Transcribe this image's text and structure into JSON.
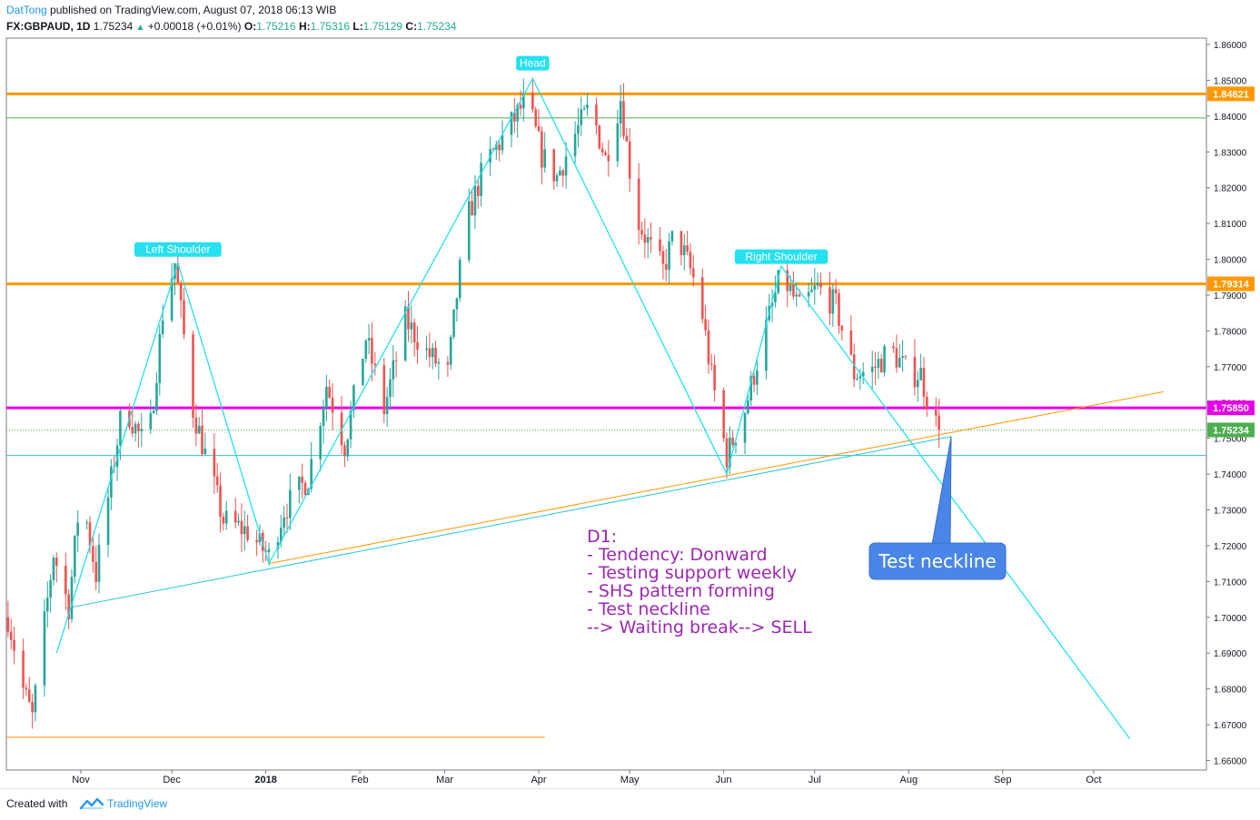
{
  "header": {
    "author": "DatTong",
    "published": "published on TradingView.com, August 07, 2018 06:13 WIB",
    "symbol": "FX:GBPAUD, 1D",
    "last": "1.75234",
    "change": "+0.00018 (+0.01%)",
    "o_label": "O:",
    "o": "1.75216",
    "h_label": "H:",
    "h": "1.75316",
    "l_label": "L:",
    "l": "1.75129",
    "c_label": "C:",
    "c": "1.75234"
  },
  "footer": {
    "created_with": "Created with",
    "brand": "TradingView"
  },
  "chart_data": {
    "type": "candlestick",
    "ylim": [
      1.655,
      1.865
    ],
    "y_ticks": [
      "1.86000",
      "1.85000",
      "1.84000",
      "1.83000",
      "1.82000",
      "1.81000",
      "1.80000",
      "1.79000",
      "1.78000",
      "1.77000",
      "1.76000",
      "1.75000",
      "1.74000",
      "1.73000",
      "1.72000",
      "1.71000",
      "1.70000",
      "1.69000",
      "1.68000",
      "1.67000",
      "1.66000"
    ],
    "x_ticks": [
      {
        "label": "Nov",
        "day": 33
      },
      {
        "label": "Dec",
        "day": 63
      },
      {
        "label": "2018",
        "day": 94
      },
      {
        "label": "Feb",
        "day": 125
      },
      {
        "label": "Mar",
        "day": 153
      },
      {
        "label": "Apr",
        "day": 184
      },
      {
        "label": "May",
        "day": 214
      },
      {
        "label": "Jun",
        "day": 245
      },
      {
        "label": "Jul",
        "day": 275
      },
      {
        "label": "Aug",
        "day": 306
      },
      {
        "label": "Sep",
        "day": 337
      },
      {
        "label": "Oct",
        "day": 367
      }
    ],
    "x_range": [
      9,
      390
    ],
    "price_levels": [
      {
        "label": "1.84621",
        "value": 1.84621,
        "color": "#ff9800",
        "width": 3
      },
      {
        "label": "1.79314",
        "value": 1.79314,
        "color": "#ff9800",
        "width": 3
      },
      {
        "label": "1.75850",
        "value": 1.7585,
        "color": "#e800e8",
        "width": 3
      }
    ],
    "thin_levels": [
      {
        "value": 1.8395,
        "color": "#4caf50"
      },
      {
        "value": 1.7452,
        "color": "#26c6da"
      },
      {
        "value": 1.6665,
        "color": "#ff9800",
        "x_end_day": 186
      }
    ],
    "last_price": {
      "label": "1.75234",
      "value": 1.75234,
      "color": "#4caf50"
    },
    "pattern_points": [
      {
        "day": 25,
        "price": 1.69
      },
      {
        "day": 65,
        "price": 1.799
      },
      {
        "day": 95,
        "price": 1.715
      },
      {
        "day": 182,
        "price": 1.8505
      },
      {
        "day": 246,
        "price": 1.74
      },
      {
        "day": 264,
        "price": 1.798
      },
      {
        "day": 379,
        "price": 1.666
      }
    ],
    "pattern_labels": [
      {
        "text": "Left Shoulder",
        "day": 65,
        "price": 1.8025
      },
      {
        "text": "Head",
        "day": 182,
        "price": 1.8545
      },
      {
        "text": "Right Shoulder",
        "day": 264,
        "price": 1.8005
      }
    ],
    "neckline_cyan": [
      {
        "day": 28,
        "price": 1.7025
      },
      {
        "day": 320,
        "price": 1.7505
      }
    ],
    "neckline_orange": [
      {
        "day": 95,
        "price": 1.715
      },
      {
        "day": 390,
        "price": 1.763
      }
    ],
    "note_lines": [
      "D1:",
      "- Tendency: Donward",
      "- Testing support weekly",
      "- SHS pattern forming",
      "- Test neckline",
      "--> Waiting break--> SELL"
    ],
    "note_color": "#9c27b0",
    "callout": {
      "text": "Test neckline",
      "color": "#4a86e8",
      "tip_day": 320,
      "tip_price": 1.7505
    },
    "up_color": "#26a69a",
    "down_color": "#ef5350",
    "anchors": [
      [
        9,
        1.7
      ],
      [
        14,
        1.68
      ],
      [
        17,
        1.672
      ],
      [
        24,
        1.718
      ],
      [
        29,
        1.703
      ],
      [
        33,
        1.736
      ],
      [
        38,
        1.712
      ],
      [
        47,
        1.76
      ],
      [
        55,
        1.746
      ],
      [
        60,
        1.785
      ],
      [
        64,
        1.799
      ],
      [
        70,
        1.758
      ],
      [
        80,
        1.727
      ],
      [
        88,
        1.724
      ],
      [
        95,
        1.717
      ],
      [
        100,
        1.73
      ],
      [
        108,
        1.739
      ],
      [
        114,
        1.765
      ],
      [
        120,
        1.748
      ],
      [
        127,
        1.778
      ],
      [
        133,
        1.758
      ],
      [
        140,
        1.783
      ],
      [
        147,
        1.774
      ],
      [
        154,
        1.768
      ],
      [
        157,
        1.79
      ],
      [
        160,
        1.81
      ],
      [
        166,
        1.826
      ],
      [
        173,
        1.835
      ],
      [
        180,
        1.845
      ],
      [
        185,
        1.829
      ],
      [
        190,
        1.823
      ],
      [
        196,
        1.835
      ],
      [
        201,
        1.843
      ],
      [
        206,
        1.828
      ],
      [
        211,
        1.845
      ],
      [
        216,
        1.812
      ],
      [
        221,
        1.803
      ],
      [
        225,
        1.797
      ],
      [
        229,
        1.808
      ],
      [
        234,
        1.797
      ],
      [
        237,
        1.79
      ],
      [
        241,
        1.767
      ],
      [
        246,
        1.745
      ],
      [
        252,
        1.758
      ],
      [
        258,
        1.778
      ],
      [
        264,
        1.796
      ],
      [
        270,
        1.786
      ],
      [
        276,
        1.792
      ],
      [
        282,
        1.787
      ],
      [
        288,
        1.768
      ],
      [
        294,
        1.769
      ],
      [
        300,
        1.775
      ],
      [
        306,
        1.768
      ],
      [
        310,
        1.768
      ],
      [
        313,
        1.758
      ],
      [
        316,
        1.7523
      ]
    ]
  }
}
